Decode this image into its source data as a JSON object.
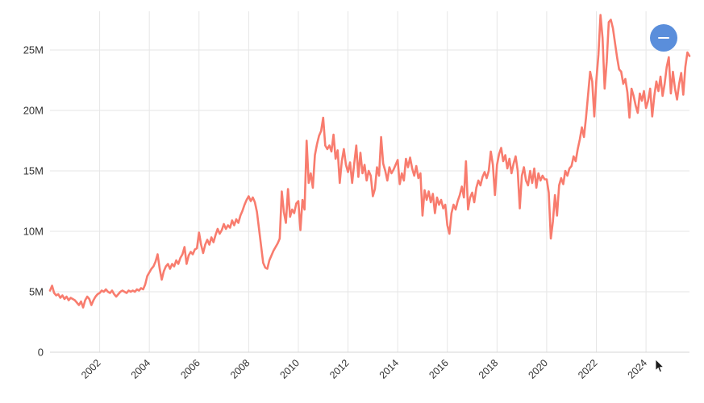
{
  "chart_data": {
    "type": "line",
    "frequency": "monthly",
    "x_start": "2000-01",
    "x_end": "2025-10",
    "x_range_years": [
      2000.0,
      2025.75
    ],
    "ylim_millions": [
      0,
      28.2
    ],
    "y_tick_values_millions": [
      0,
      5,
      10,
      15,
      20,
      25
    ],
    "y_tick_labels": [
      "0",
      "5M",
      "10M",
      "15M",
      "20M",
      "25M"
    ],
    "x_tick_years": [
      2002,
      2004,
      2006,
      2008,
      2010,
      2012,
      2014,
      2016,
      2018,
      2020,
      2022,
      2024
    ],
    "x_tick_labels": [
      "2002",
      "2004",
      "2006",
      "2008",
      "2010",
      "2012",
      "2014",
      "2016",
      "2018",
      "2020",
      "2022",
      "2024"
    ],
    "grid": true,
    "legend": "none",
    "values_millions": [
      5.1,
      5.5,
      4.9,
      4.7,
      4.8,
      4.5,
      4.7,
      4.4,
      4.6,
      4.3,
      4.5,
      4.4,
      4.3,
      4.1,
      3.9,
      4.2,
      3.7,
      4.3,
      4.6,
      4.4,
      3.9,
      4.3,
      4.6,
      4.8,
      4.9,
      5.1,
      5.0,
      5.2,
      5.0,
      4.9,
      5.1,
      4.8,
      4.6,
      4.8,
      5.0,
      5.1,
      5.0,
      4.9,
      5.1,
      5.0,
      5.1,
      5.0,
      5.2,
      5.1,
      5.3,
      5.2,
      5.6,
      6.3,
      6.6,
      6.9,
      7.1,
      7.5,
      8.1,
      6.9,
      6.0,
      6.7,
      7.1,
      7.3,
      6.9,
      7.3,
      7.1,
      7.6,
      7.3,
      7.8,
      8.1,
      8.7,
      7.3,
      8.0,
      8.3,
      8.1,
      8.5,
      8.6,
      9.9,
      8.9,
      8.2,
      8.9,
      9.3,
      8.9,
      9.5,
      9.1,
      9.7,
      10.2,
      9.8,
      10.1,
      10.6,
      10.2,
      10.5,
      10.3,
      10.9,
      10.5,
      11.0,
      10.7,
      11.3,
      11.7,
      12.2,
      12.6,
      12.9,
      12.5,
      12.8,
      12.4,
      11.6,
      10.2,
      8.8,
      7.4,
      7.0,
      6.9,
      7.6,
      8.0,
      8.4,
      8.7,
      9.0,
      9.4,
      13.3,
      11.6,
      10.7,
      13.5,
      11.2,
      11.8,
      11.5,
      12.3,
      12.5,
      10.1,
      12.6,
      11.8,
      17.5,
      14.0,
      14.8,
      13.6,
      16.3,
      17.2,
      17.9,
      18.3,
      19.4,
      17.1,
      16.8,
      17.1,
      16.6,
      18.0,
      16.0,
      16.7,
      14.0,
      15.8,
      16.8,
      15.5,
      14.9,
      15.7,
      14.0,
      15.6,
      17.1,
      14.5,
      16.5,
      14.8,
      15.5,
      14.2,
      15.0,
      14.6,
      12.9,
      13.5,
      15.3,
      14.6,
      17.8,
      15.6,
      15.0,
      14.2,
      15.3,
      14.8,
      15.1,
      15.5,
      15.9,
      13.9,
      14.8,
      14.2,
      16.0,
      15.3,
      16.1,
      15.2,
      14.6,
      15.4,
      14.4,
      14.8,
      11.3,
      13.4,
      12.6,
      13.3,
      12.4,
      13.1,
      11.5,
      12.8,
      12.2,
      12.6,
      11.9,
      12.2,
      10.5,
      9.8,
      11.5,
      12.2,
      11.8,
      12.5,
      13.0,
      13.7,
      12.8,
      15.8,
      11.8,
      12.8,
      13.2,
      12.4,
      13.6,
      14.2,
      13.8,
      14.5,
      14.9,
      14.4,
      15.0,
      16.6,
      15.5,
      13.0,
      15.5,
      16.4,
      16.9,
      15.8,
      16.3,
      15.2,
      16.0,
      14.8,
      15.6,
      16.2,
      15.0,
      11.9,
      14.6,
      15.3,
      14.2,
      13.8,
      15.0,
      14.0,
      15.2,
      13.6,
      14.8,
      14.2,
      14.6,
      14.3,
      14.3,
      13.2,
      9.4,
      10.8,
      13.0,
      11.3,
      13.8,
      14.4,
      13.9,
      15.0,
      14.6,
      15.2,
      15.4,
      16.2,
      15.8,
      16.8,
      17.6,
      18.6,
      17.8,
      19.4,
      21.3,
      23.2,
      22.4,
      19.5,
      22.5,
      24.6,
      27.9,
      26.0,
      21.8,
      24.0,
      27.3,
      27.5,
      26.8,
      25.6,
      24.4,
      23.4,
      23.2,
      22.2,
      22.6,
      21.5,
      19.4,
      21.8,
      21.2,
      20.4,
      19.8,
      21.4,
      20.8,
      21.6,
      20.2,
      20.8,
      21.8,
      19.5,
      21.2,
      22.4,
      21.6,
      22.8,
      21.2,
      22.2,
      23.6,
      24.4,
      21.4,
      23.2,
      21.8,
      20.9,
      22.2,
      23.1,
      21.3,
      23.6,
      24.8,
      24.5
    ]
  },
  "style_colors": {
    "series_line": "#f87c6e",
    "grid_line": "#e6e6e6",
    "axis_line": "#d4d4d4",
    "tick_label": "#333333",
    "collapse_button_bg": "#5a8edb",
    "collapse_button_glyph": "#ffffff"
  },
  "controls": {
    "collapse_button": {
      "glyph": "minus"
    }
  }
}
